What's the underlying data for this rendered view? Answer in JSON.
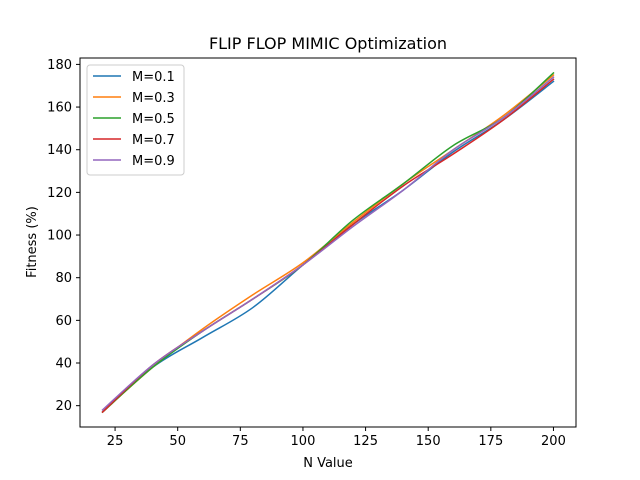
{
  "chart_data": {
    "type": "line",
    "title": "FLIP FLOP MIMIC Optimization",
    "xlabel": "N Value",
    "ylabel": "Fitness (%)",
    "xlim": [
      11,
      209
    ],
    "ylim": [
      10,
      183
    ],
    "xticks": [
      25,
      50,
      75,
      100,
      125,
      150,
      175,
      200
    ],
    "yticks": [
      20,
      40,
      60,
      80,
      100,
      120,
      140,
      160,
      180
    ],
    "grid": false,
    "legend_position": "top-left",
    "x": [
      20,
      40,
      60,
      80,
      100,
      120,
      140,
      160,
      180,
      200
    ],
    "series": [
      {
        "name": "M=0.1",
        "color": "#1f77b4",
        "values": [
          17,
          38,
          52,
          66,
          86,
          105,
          121,
          139,
          154,
          172
        ]
      },
      {
        "name": "M=0.3",
        "color": "#ff7f0e",
        "values": [
          17,
          38,
          56,
          72,
          87,
          106,
          124,
          140,
          156,
          175
        ]
      },
      {
        "name": "M=0.5",
        "color": "#2ca02c",
        "values": [
          17,
          38,
          55,
          70,
          86,
          107,
          124,
          142,
          155,
          176
        ]
      },
      {
        "name": "M=0.7",
        "color": "#d62728",
        "values": [
          17,
          39,
          55,
          70,
          86,
          105,
          123,
          138,
          154,
          173
        ]
      },
      {
        "name": "M=0.9",
        "color": "#9467bd",
        "values": [
          18,
          39,
          55,
          70,
          86,
          104,
          121,
          140,
          155,
          174
        ]
      }
    ]
  }
}
